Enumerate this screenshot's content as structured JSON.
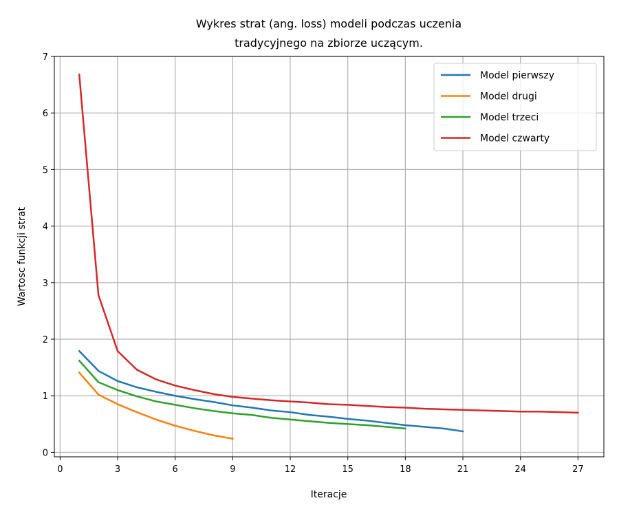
{
  "chart_data": {
    "type": "line",
    "title_lines": [
      "Wykres strat (ang. loss) modeli podczas uczenia",
      "tradycyjnego na zbiorze uczącym."
    ],
    "xlabel": "Iteracje",
    "ylabel": "Wartosc funkcji strat",
    "xlim": [
      -0.3,
      28.35
    ],
    "ylim": [
      -0.08,
      7.0
    ],
    "xticks": [
      0,
      3,
      6,
      9,
      12,
      15,
      18,
      21,
      24,
      27
    ],
    "yticks": [
      0,
      1,
      2,
      3,
      4,
      5,
      6,
      7
    ],
    "grid": true,
    "legend_position": "top-right",
    "series": [
      {
        "name": "Model pierwszy",
        "color": "#1f77b4",
        "x": [
          1,
          2,
          3,
          4,
          5,
          6,
          7,
          8,
          9,
          10,
          11,
          12,
          13,
          14,
          15,
          16,
          17,
          18,
          19,
          20,
          21
        ],
        "y": [
          1.79,
          1.44,
          1.26,
          1.15,
          1.07,
          1.0,
          0.94,
          0.89,
          0.83,
          0.79,
          0.74,
          0.71,
          0.66,
          0.63,
          0.59,
          0.56,
          0.52,
          0.48,
          0.45,
          0.42,
          0.37
        ]
      },
      {
        "name": "Model drugi",
        "color": "#ff7f0e",
        "x": [
          1,
          2,
          3,
          4,
          5,
          6,
          7,
          8,
          9
        ],
        "y": [
          1.41,
          1.02,
          0.85,
          0.71,
          0.58,
          0.47,
          0.38,
          0.3,
          0.24
        ]
      },
      {
        "name": "Model trzeci",
        "color": "#2ca02c",
        "x": [
          1,
          2,
          3,
          4,
          5,
          6,
          7,
          8,
          9,
          10,
          11,
          12,
          13,
          14,
          15,
          16,
          17,
          18
        ],
        "y": [
          1.62,
          1.24,
          1.1,
          0.99,
          0.9,
          0.84,
          0.78,
          0.73,
          0.69,
          0.66,
          0.61,
          0.58,
          0.55,
          0.52,
          0.5,
          0.48,
          0.45,
          0.42
        ]
      },
      {
        "name": "Model czwarty",
        "color": "#d62728",
        "x": [
          1,
          2,
          3,
          4,
          5,
          6,
          7,
          8,
          9,
          10,
          11,
          12,
          13,
          14,
          15,
          16,
          17,
          18,
          19,
          20,
          21,
          22,
          23,
          24,
          25,
          26,
          27
        ],
        "y": [
          6.68,
          2.78,
          1.79,
          1.46,
          1.29,
          1.18,
          1.1,
          1.03,
          0.98,
          0.95,
          0.92,
          0.9,
          0.88,
          0.85,
          0.84,
          0.82,
          0.8,
          0.79,
          0.77,
          0.76,
          0.75,
          0.74,
          0.73,
          0.72,
          0.72,
          0.71,
          0.7
        ]
      }
    ]
  }
}
